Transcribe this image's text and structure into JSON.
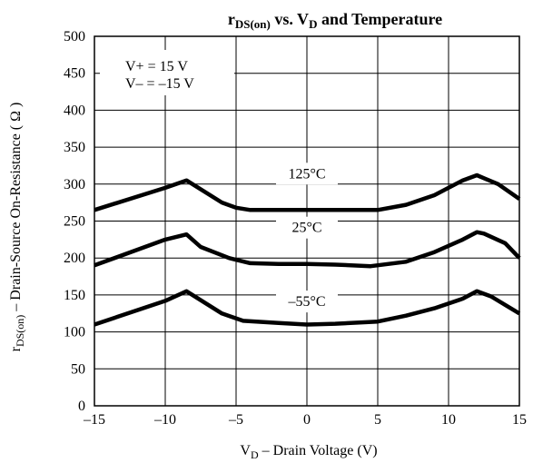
{
  "chart_data": {
    "type": "line",
    "title": {
      "r": "r",
      "sub1": "DS(on)",
      "mid": " vs. V",
      "sub2": "D",
      "rest": " and Temperature"
    },
    "xlabel": {
      "main": "V",
      "sub": "D",
      "rest": " – Drain Voltage (V)"
    },
    "ylabel": {
      "main": "r",
      "sub": "DS(on)",
      "rest": " – Drain-Source On-Resistance ( Ω )"
    },
    "xlim": [
      -15,
      15
    ],
    "ylim": [
      0,
      500
    ],
    "xticks": [
      -15,
      -10,
      -5,
      0,
      5,
      10,
      15
    ],
    "xtick_labels": [
      "–15",
      "–10",
      "–5",
      "0",
      "5",
      "10",
      "15"
    ],
    "yticks": [
      0,
      50,
      100,
      150,
      200,
      250,
      300,
      350,
      400,
      450,
      500
    ],
    "ytick_labels": [
      "0",
      "50",
      "100",
      "150",
      "200",
      "250",
      "300",
      "350",
      "400",
      "450",
      "500"
    ],
    "grid": true,
    "conditions": [
      "V+ = 15 V",
      "V– = –15 V"
    ],
    "series": [
      {
        "name": "125°C",
        "label_at": [
          0,
          308
        ],
        "x": [
          -15,
          -10,
          -8.5,
          -6,
          -5,
          -4,
          -2,
          0,
          2,
          5,
          7,
          9,
          11,
          12,
          12.5,
          13.5,
          15
        ],
        "y": [
          265,
          295,
          305,
          275,
          268,
          265,
          265,
          265,
          265,
          265,
          272,
          285,
          305,
          312,
          308,
          300,
          280
        ]
      },
      {
        "name": "25°C",
        "label_at": [
          0,
          235
        ],
        "x": [
          -15,
          -10,
          -8.5,
          -7.5,
          -5.5,
          -4,
          -2,
          0,
          2,
          4.5,
          7,
          9,
          11,
          12,
          12.5,
          14,
          15
        ],
        "y": [
          190,
          225,
          232,
          215,
          200,
          193,
          192,
          192,
          191,
          189,
          195,
          208,
          225,
          235,
          233,
          220,
          200
        ]
      },
      {
        "name": "–55°C",
        "label_at": [
          0,
          135
        ],
        "x": [
          -15,
          -10,
          -8.5,
          -6,
          -4.5,
          -2,
          0,
          2,
          5,
          7,
          9,
          11,
          12,
          13,
          15
        ],
        "y": [
          110,
          142,
          155,
          125,
          115,
          112,
          110,
          111,
          114,
          122,
          132,
          145,
          155,
          148,
          125
        ]
      }
    ]
  }
}
